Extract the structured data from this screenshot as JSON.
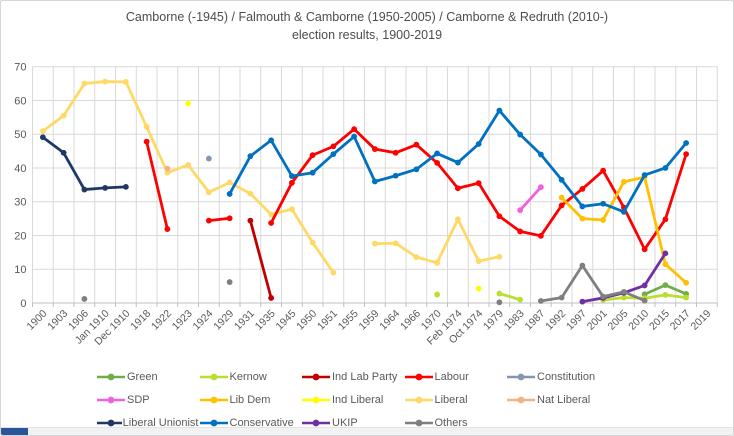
{
  "title": {
    "line1": "Camborne (-1945) / Falmouth & Camborne (1950-2005) / Camborne & Redruth (2010-)",
    "line2": "election results, 1900-2019"
  },
  "footer": {
    "accent_color": "#2a5699",
    "strip_color": "#f1f2f4"
  },
  "chart_data": {
    "type": "line",
    "title": "Camborne (-1945) / Falmouth & Camborne (1950-2005) / Camborne & Redruth (2010-) election results, 1900-2019",
    "xlabel": "",
    "ylabel": "",
    "grid": true,
    "legend_position": "bottom",
    "y_axis": {
      "min": 0,
      "max": 70,
      "step": 10,
      "tick_labels": [
        "0",
        "10",
        "20",
        "30",
        "40",
        "50",
        "60",
        "70"
      ]
    },
    "categories": [
      "1900",
      "1903",
      "1906",
      "Jan 1910",
      "Dec 1910",
      "1918",
      "1922",
      "1923",
      "1924",
      "1929",
      "1931",
      "1935",
      "1945",
      "1950",
      "1951",
      "1955",
      "1959",
      "1964",
      "1966",
      "1970",
      "Feb 1974",
      "Oct 1974",
      "1979",
      "1983",
      "1987",
      "1992",
      "1997",
      "2001",
      "2005",
      "2010",
      "2015",
      "2017",
      "2019"
    ],
    "series": [
      {
        "name": "Green",
        "color": "#70ad47",
        "points": [
          [
            29,
            2.6
          ],
          [
            30,
            5.3
          ],
          [
            31,
            2.7
          ]
        ]
      },
      {
        "name": "Kernow",
        "color": "#b8e02e",
        "points": [
          [
            19,
            2.5
          ],
          [
            22,
            2.8
          ],
          [
            23,
            1.0
          ],
          [
            27,
            0.9
          ],
          [
            28,
            1.6
          ],
          [
            29,
            1.4
          ],
          [
            30,
            2.4
          ],
          [
            31,
            1.6
          ]
        ]
      },
      {
        "name": "Ind Lab Party",
        "color": "#c00000",
        "points": [
          [
            10,
            24.4
          ],
          [
            11,
            1.5
          ]
        ]
      },
      {
        "name": "Labour",
        "color": "#ff0000",
        "points": [
          [
            5,
            47.8
          ],
          [
            6,
            21.9
          ],
          [
            8,
            24.4
          ],
          [
            9,
            25.1
          ],
          [
            11,
            23.7
          ],
          [
            12,
            35.6
          ],
          [
            13,
            43.8
          ],
          [
            14,
            46.4
          ],
          [
            15,
            51.5
          ],
          [
            16,
            45.6
          ],
          [
            17,
            44.5
          ],
          [
            18,
            46.9
          ],
          [
            19,
            41.5
          ],
          [
            20,
            34.0
          ],
          [
            21,
            35.5
          ],
          [
            22,
            25.7
          ],
          [
            23,
            21.2
          ],
          [
            24,
            19.9
          ],
          [
            25,
            28.9
          ],
          [
            26,
            33.8
          ],
          [
            27,
            39.2
          ],
          [
            28,
            28.3
          ],
          [
            29,
            15.9
          ],
          [
            30,
            24.8
          ],
          [
            31,
            44.1
          ]
        ]
      },
      {
        "name": "Constitution",
        "color": "#8496b0",
        "points": [
          [
            8,
            42.8
          ]
        ]
      },
      {
        "name": "SDP",
        "color": "#f060e0",
        "points": [
          [
            23,
            27.5
          ],
          [
            24,
            34.3
          ]
        ]
      },
      {
        "name": "Lib Dem",
        "color": "#ffc000",
        "points": [
          [
            25,
            31.2
          ],
          [
            26,
            25.0
          ],
          [
            27,
            24.6
          ],
          [
            28,
            35.9
          ],
          [
            29,
            37.3
          ],
          [
            30,
            11.5
          ],
          [
            31,
            6.0
          ]
        ]
      },
      {
        "name": "Ind Liberal",
        "color": "#ffff00",
        "points": [
          [
            7,
            59.1
          ],
          [
            21,
            4.3
          ]
        ]
      },
      {
        "name": "Liberal",
        "color": "#ffd966",
        "points": [
          [
            0,
            50.9
          ],
          [
            1,
            55.5
          ],
          [
            2,
            65.0
          ],
          [
            3,
            65.6
          ],
          [
            4,
            65.5
          ],
          [
            5,
            52.2
          ],
          [
            6,
            38.6
          ],
          [
            7,
            40.9
          ],
          [
            8,
            32.8
          ],
          [
            9,
            35.7
          ],
          [
            10,
            32.4
          ],
          [
            11,
            26.2
          ],
          [
            12,
            27.8
          ],
          [
            13,
            17.9
          ],
          [
            14,
            9.0
          ],
          [
            16,
            17.6
          ],
          [
            17,
            17.7
          ],
          [
            18,
            13.6
          ],
          [
            19,
            11.9
          ],
          [
            20,
            24.8
          ],
          [
            21,
            12.4
          ],
          [
            22,
            13.7
          ]
        ]
      },
      {
        "name": "Nat Liberal",
        "color": "#f4b183",
        "points": [
          [
            6,
            39.8
          ]
        ]
      },
      {
        "name": "Liberal Unionist",
        "color": "#203864",
        "points": [
          [
            0,
            49.1
          ],
          [
            1,
            44.5
          ],
          [
            2,
            33.6
          ],
          [
            3,
            34.1
          ],
          [
            4,
            34.4
          ]
        ]
      },
      {
        "name": "Conservative",
        "color": "#0070c0",
        "points": [
          [
            9,
            32.3
          ],
          [
            10,
            43.5
          ],
          [
            11,
            48.2
          ],
          [
            12,
            37.6
          ],
          [
            13,
            38.6
          ],
          [
            14,
            44.1
          ],
          [
            15,
            49.3
          ],
          [
            16,
            36.0
          ],
          [
            17,
            37.7
          ],
          [
            18,
            39.6
          ],
          [
            19,
            44.3
          ],
          [
            20,
            41.6
          ],
          [
            21,
            47.1
          ],
          [
            22,
            57.0
          ],
          [
            23,
            49.9
          ],
          [
            24,
            44.0
          ],
          [
            25,
            36.5
          ],
          [
            26,
            28.6
          ],
          [
            27,
            29.4
          ],
          [
            28,
            27.0
          ],
          [
            29,
            37.9
          ],
          [
            30,
            40.0
          ],
          [
            31,
            47.4
          ]
        ]
      },
      {
        "name": "UKIP",
        "color": "#7030a0",
        "points": [
          [
            26,
            0.4
          ],
          [
            27,
            1.5
          ],
          [
            28,
            3.0
          ],
          [
            29,
            5.2
          ],
          [
            30,
            14.7
          ]
        ]
      },
      {
        "name": "Others",
        "color": "#7f7f7f",
        "points": [
          [
            2,
            1.2
          ],
          [
            9,
            6.2
          ],
          [
            22,
            0.2
          ],
          [
            24,
            0.6
          ],
          [
            25,
            1.6
          ],
          [
            26,
            11.1
          ],
          [
            27,
            1.9
          ],
          [
            28,
            3.3
          ],
          [
            29,
            0.7
          ]
        ]
      }
    ],
    "draw_order": [
      "Liberal",
      "Green",
      "Kernow",
      "Ind Lab Party",
      "Labour",
      "Constitution",
      "SDP",
      "Lib Dem",
      "Ind Liberal",
      "Nat Liberal",
      "Liberal Unionist",
      "Conservative",
      "UKIP",
      "Others"
    ],
    "style": {
      "gridline_color": "#d9d9d9",
      "axis_color": "#bfbfbf",
      "tick_label_color": "#595959",
      "title_color": "#4d4d4d"
    }
  }
}
